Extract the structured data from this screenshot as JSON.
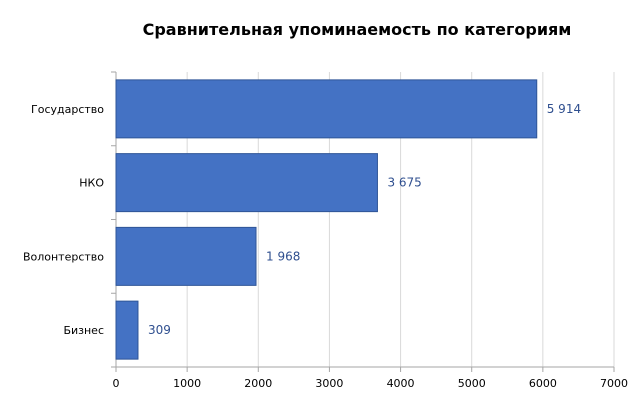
{
  "chart_data": {
    "type": "bar",
    "orientation": "horizontal",
    "title": "Сравнительная упоминаемость по категориям",
    "xlabel": "",
    "ylabel": "",
    "categories": [
      "Государство",
      "НКО",
      "Волонтерство",
      "Бизнес"
    ],
    "values": [
      5914,
      3675,
      1968,
      309
    ],
    "data_labels": [
      "5 914",
      "3 675",
      "1 968",
      "309"
    ],
    "xlim": [
      0,
      7000
    ],
    "x_ticks": [
      0,
      1000,
      2000,
      3000,
      4000,
      5000,
      6000,
      7000
    ],
    "x_tick_labels": [
      "0",
      "1000",
      "2000",
      "3000",
      "4000",
      "5000",
      "6000",
      "7000"
    ],
    "grid": "vertical",
    "legend": "none",
    "colors": {
      "bar": "#4472c4",
      "bar_border": "#2f5597",
      "data_label": "#2f4f8f",
      "grid": "#d9d9d9",
      "axis": "#a6a6a6"
    }
  }
}
